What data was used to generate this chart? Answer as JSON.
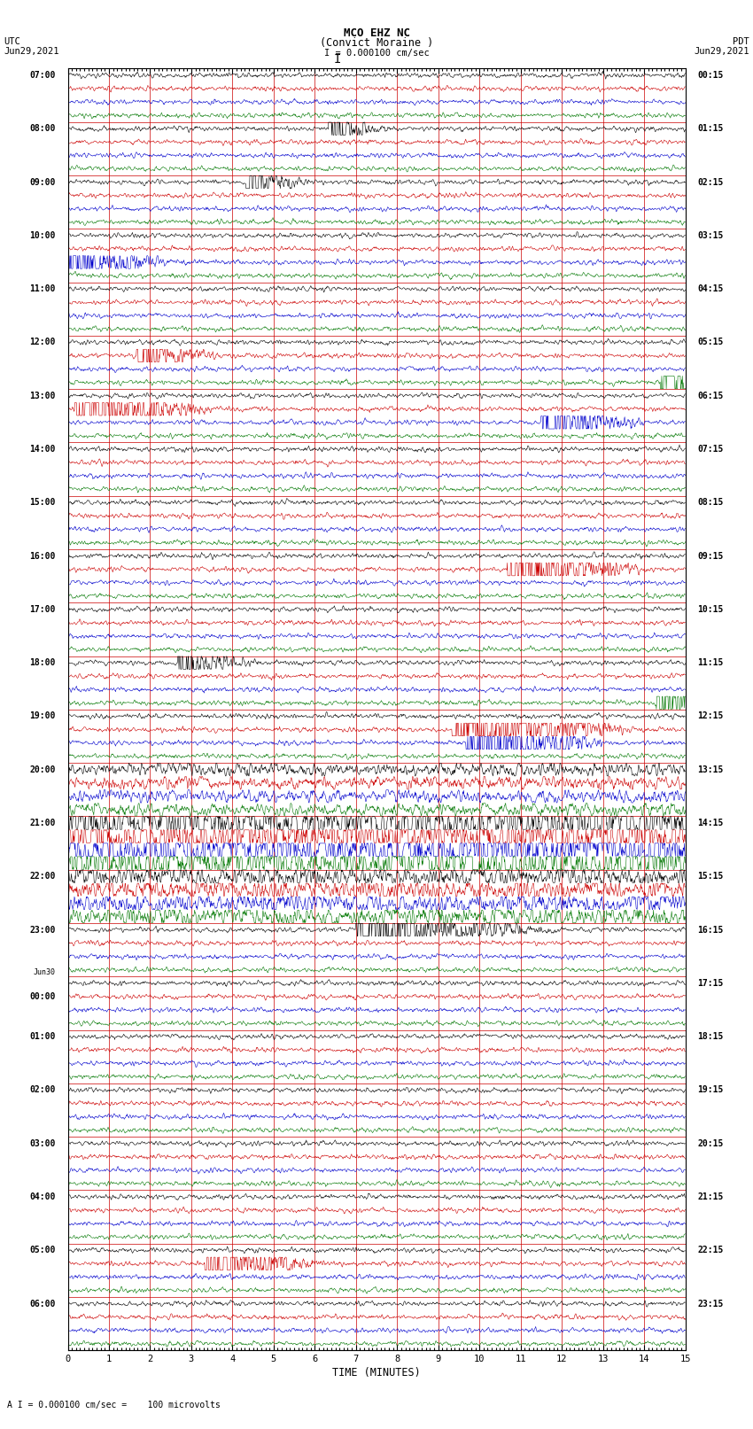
{
  "title_line1": "MCO EHZ NC",
  "title_line2": "(Convict Moraine )",
  "scale_label": "I = 0.000100 cm/sec",
  "footnote": "A I = 0.000100 cm/sec =    100 microvolts",
  "utc_label": "UTC",
  "pdt_label": "PDT",
  "left_date": "Jun29,2021",
  "right_date": "Jun29,2021",
  "xlabel": "TIME (MINUTES)",
  "xlim": [
    0,
    15
  ],
  "xticks": [
    0,
    1,
    2,
    3,
    4,
    5,
    6,
    7,
    8,
    9,
    10,
    11,
    12,
    13,
    14,
    15
  ],
  "bg_color": "#ffffff",
  "grid_color": "#cc0000",
  "trace_colors": [
    "#000000",
    "#cc0000",
    "#0000cc",
    "#007700"
  ],
  "n_rows": 96,
  "traces_per_row": 4,
  "figwidth": 8.5,
  "figheight": 16.13,
  "left_times": [
    "07:00",
    "",
    "",
    "",
    "08:00",
    "",
    "",
    "",
    "09:00",
    "",
    "",
    "",
    "10:00",
    "",
    "",
    "",
    "11:00",
    "",
    "",
    "",
    "12:00",
    "",
    "",
    "",
    "13:00",
    "",
    "",
    "",
    "14:00",
    "",
    "",
    "",
    "15:00",
    "",
    "",
    "",
    "16:00",
    "",
    "",
    "",
    "17:00",
    "",
    "",
    "",
    "18:00",
    "",
    "",
    "",
    "19:00",
    "",
    "",
    "",
    "20:00",
    "",
    "",
    "",
    "21:00",
    "",
    "",
    "",
    "22:00",
    "",
    "",
    "",
    "23:00",
    "",
    "",
    "",
    "Jun30",
    "00:00",
    "",
    "",
    "01:00",
    "",
    "",
    "",
    "02:00",
    "",
    "",
    "",
    "03:00",
    "",
    "",
    "",
    "04:00",
    "",
    "",
    "",
    "05:00",
    "",
    "",
    "",
    "06:00",
    "",
    "",
    ""
  ],
  "right_times": [
    "00:15",
    "",
    "",
    "",
    "01:15",
    "",
    "",
    "",
    "02:15",
    "",
    "",
    "",
    "03:15",
    "",
    "",
    "",
    "04:15",
    "",
    "",
    "",
    "05:15",
    "",
    "",
    "",
    "06:15",
    "",
    "",
    "",
    "07:15",
    "",
    "",
    "",
    "08:15",
    "",
    "",
    "",
    "09:15",
    "",
    "",
    "",
    "10:15",
    "",
    "",
    "",
    "11:15",
    "",
    "",
    "",
    "12:15",
    "",
    "",
    "",
    "13:15",
    "",
    "",
    "",
    "14:15",
    "",
    "",
    "",
    "15:15",
    "",
    "",
    "",
    "16:15",
    "",
    "",
    "",
    "17:15",
    "",
    "",
    "",
    "18:15",
    "",
    "",
    "",
    "19:15",
    "",
    "",
    "",
    "20:15",
    "",
    "",
    "",
    "21:15",
    "",
    "",
    "",
    "22:15",
    "",
    "",
    "",
    "23:15",
    "",
    "",
    ""
  ]
}
